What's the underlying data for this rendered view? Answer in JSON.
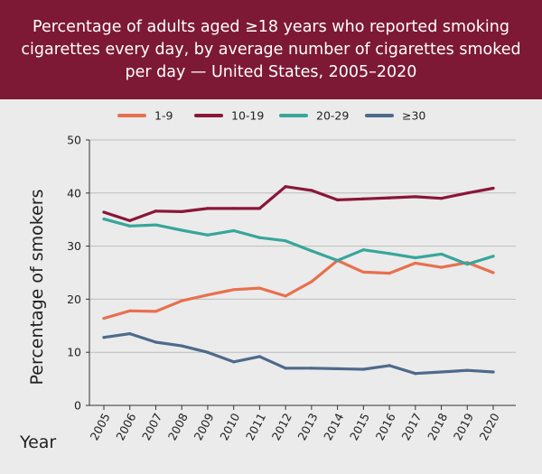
{
  "header": {
    "title": "Percentage of adults aged ≥18 years who reported smoking cigarettes every day, by average number of cigarettes smoked per day — United States, 2005–2020"
  },
  "colors": {
    "header_bg": "#7d1934",
    "background": "#ebebeb"
  },
  "chart_data": {
    "type": "line",
    "title": "Percentage of adults aged ≥18 years who reported smoking cigarettes every day, by average number of cigarettes smoked per day — United States, 2005–2020",
    "xlabel": "Year",
    "ylabel": "Percentage of smokers",
    "ylim": [
      0,
      50
    ],
    "yticks": [
      0,
      10,
      20,
      30,
      40,
      50
    ],
    "grid": true,
    "legend_position": "top",
    "categories": [
      "2005",
      "2006",
      "2007",
      "2008",
      "2009",
      "2010",
      "2011",
      "2012",
      "2013",
      "2014",
      "2015",
      "2016",
      "2017",
      "2018",
      "2019",
      "2020"
    ],
    "series": [
      {
        "name": "1-9",
        "color": "#e8704e",
        "values": [
          16.4,
          17.8,
          17.7,
          19.7,
          20.8,
          21.8,
          22.1,
          20.6,
          23.3,
          27.3,
          25.1,
          24.9,
          26.8,
          26.0,
          26.9,
          25.0
        ]
      },
      {
        "name": "10-19",
        "color": "#8a1638",
        "values": [
          36.4,
          34.8,
          36.6,
          36.5,
          37.1,
          37.1,
          37.1,
          41.2,
          40.5,
          38.7,
          38.9,
          39.1,
          39.3,
          39.0,
          40.0,
          40.9
        ]
      },
      {
        "name": "20-29",
        "color": "#38a69a",
        "values": [
          35.1,
          33.8,
          34.0,
          33.0,
          32.1,
          32.9,
          31.6,
          31.0,
          29.1,
          27.3,
          29.3,
          28.6,
          27.8,
          28.5,
          26.6,
          28.1
        ]
      },
      {
        "name": "≥30",
        "color": "#4e6a8b",
        "values": [
          12.8,
          13.5,
          11.9,
          11.2,
          10.0,
          8.2,
          9.2,
          7.0,
          7.0,
          6.9,
          6.8,
          7.5,
          6.0,
          6.3,
          6.6,
          6.3
        ]
      }
    ]
  }
}
